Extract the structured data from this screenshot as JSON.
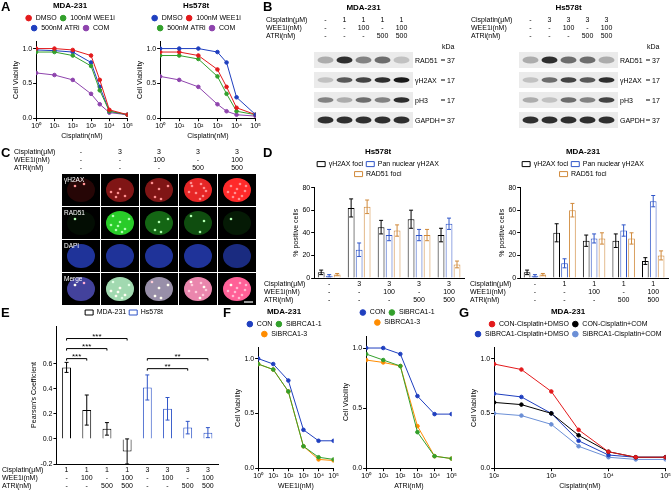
{
  "chart_data": [
    {
      "panel": "A",
      "type": "line",
      "title": "MDA-231",
      "x_label": "Cisplatin(nM)",
      "y_label": "Cell Viability",
      "log": "x",
      "grid": false,
      "legend": "top",
      "x": [
        1,
        10,
        100,
        1000,
        3000,
        10000,
        100000
      ],
      "series": [
        {
          "name": "DMSO",
          "color": "#e31a1c",
          "marker": "circle",
          "values": [
            1.0,
            1.0,
            0.98,
            0.9,
            0.55,
            0.12,
            0.05
          ]
        },
        {
          "name": "100nM WEE1i",
          "color": "#33a02c",
          "marker": "circle",
          "values": [
            0.95,
            0.95,
            0.9,
            0.75,
            0.4,
            0.1,
            0.05
          ]
        },
        {
          "name": "500nM ATRi",
          "color": "#1f3fbf",
          "marker": "circle",
          "values": [
            0.98,
            0.97,
            0.95,
            0.8,
            0.45,
            0.1,
            0.05
          ]
        },
        {
          "name": "COM",
          "color": "#8e44ad",
          "marker": "circle",
          "values": [
            0.65,
            0.62,
            0.55,
            0.35,
            0.2,
            0.08,
            0.05
          ]
        }
      ],
      "xlim": [
        1,
        100000
      ],
      "xticks": [
        {
          "value": 1,
          "label": "10⁰"
        },
        {
          "value": 10,
          "label": "10¹"
        },
        {
          "value": 100,
          "label": "10²"
        },
        {
          "value": 1000,
          "label": "10³"
        },
        {
          "value": 10000,
          "label": "10⁴"
        },
        {
          "value": 100000,
          "label": "10⁵"
        }
      ],
      "ylim": [
        0,
        1.1
      ],
      "yticks": [
        {
          "value": 0,
          "label": "0.0"
        },
        0.5,
        {
          "value": 1,
          "label": "1.0"
        }
      ]
    },
    {
      "type": "line",
      "title": "Hs578t",
      "x_label": "Cisplatin(nM)",
      "y_label": "Cell Viability",
      "log": "x",
      "grid": false,
      "legend": "top",
      "x": [
        1,
        10,
        100,
        1000,
        3000,
        10000,
        100000
      ],
      "series": [
        {
          "name": "DMSO",
          "color": "#1f3fbf",
          "marker": "circle",
          "values": [
            1.0,
            1.0,
            1.0,
            0.95,
            0.8,
            0.3,
            0.05
          ]
        },
        {
          "name": "100nM WEE1i",
          "color": "#e31a1c",
          "marker": "circle",
          "values": [
            0.95,
            0.95,
            0.9,
            0.7,
            0.45,
            0.15,
            0.05
          ]
        },
        {
          "name": "500nM ATRi",
          "color": "#33a02c",
          "marker": "circle",
          "values": [
            0.9,
            0.9,
            0.85,
            0.6,
            0.35,
            0.1,
            0.05
          ]
        },
        {
          "name": "COM",
          "color": "#8e44ad",
          "marker": "circle",
          "values": [
            0.6,
            0.55,
            0.45,
            0.2,
            0.1,
            0.05,
            0.03
          ]
        }
      ],
      "xlim": [
        1,
        100000
      ],
      "xticks": [
        {
          "value": 1,
          "label": "10⁰"
        },
        {
          "value": 10,
          "label": "10¹"
        },
        {
          "value": 100,
          "label": "10²"
        },
        {
          "value": 1000,
          "label": "10³"
        },
        {
          "value": 10000,
          "label": "10⁴"
        },
        {
          "value": 100000,
          "label": "10⁵"
        }
      ],
      "ylim": [
        0,
        1.1
      ],
      "yticks": [
        {
          "value": 0,
          "label": "0.0"
        },
        0.5,
        {
          "value": 1,
          "label": "1.0"
        }
      ]
    },
    {
      "panel": "D",
      "type": "bar",
      "title": "Hs578t",
      "y_label": "% positive cells",
      "grid": false,
      "legend": "top",
      "condition_rows": [
        "Cisplatin(μM)",
        "WEE1i(nM)",
        "ATRi(nM)"
      ],
      "categories": [
        [
          "-",
          "-",
          "-"
        ],
        [
          "3",
          "-",
          "-"
        ],
        [
          "3",
          "100",
          "-"
        ],
        [
          "3",
          "-",
          "500"
        ],
        [
          "3",
          "100",
          "500"
        ]
      ],
      "series": [
        {
          "name": "γH2AX foci",
          "color": "#000000",
          "values": [
            5,
            62,
            45,
            52,
            38
          ],
          "errors": [
            2,
            8,
            6,
            8,
            6
          ]
        },
        {
          "name": "Pan nuclear γH2AX",
          "color": "#2f55c8",
          "values": [
            2,
            25,
            38,
            38,
            48
          ],
          "errors": [
            1,
            6,
            5,
            5,
            5
          ]
        },
        {
          "name": "RAD51 foci",
          "color": "#d0893a",
          "values": [
            3,
            63,
            42,
            38,
            12
          ],
          "errors": [
            1,
            6,
            5,
            5,
            3
          ]
        }
      ],
      "ylim": [
        0,
        80
      ],
      "yticks": [
        0,
        20,
        40,
        60,
        80
      ]
    },
    {
      "type": "bar",
      "title": "MDA-231",
      "y_label": "% positive cells",
      "grid": false,
      "legend": "top",
      "condition_rows": [
        "Cisplatin(μM)",
        "WEE1i(nM)",
        "ATRi(nM)"
      ],
      "categories": [
        [
          "-",
          "-",
          "-"
        ],
        [
          "1",
          "-",
          "-"
        ],
        [
          "1",
          "100",
          "-"
        ],
        [
          "1",
          "-",
          "500"
        ],
        [
          "1",
          "100",
          "500"
        ]
      ],
      "series": [
        {
          "name": "γH2AX foci",
          "color": "#000000",
          "values": [
            5,
            40,
            33,
            33,
            15
          ],
          "errors": [
            2,
            8,
            5,
            6,
            3
          ]
        },
        {
          "name": "Pan nuclear γH2AX",
          "color": "#2f55c8",
          "values": [
            2,
            13,
            35,
            42,
            68
          ],
          "errors": [
            1,
            4,
            4,
            5,
            5
          ]
        },
        {
          "name": "RAD51 foci",
          "color": "#d0893a",
          "values": [
            3,
            60,
            35,
            35,
            20
          ],
          "errors": [
            1,
            6,
            5,
            5,
            4
          ]
        }
      ],
      "ylim": [
        0,
        80
      ],
      "yticks": [
        0,
        20,
        40,
        60,
        80
      ]
    },
    {
      "panel": "E",
      "type": "bar",
      "y_label": "Pearson's Coefficient",
      "grid": false,
      "legend": "top",
      "condition_rows": [
        "Cisplatin(μM)",
        "WEE1i(nM)",
        "ATRi(nM)"
      ],
      "categories": [
        [
          "1",
          "-",
          "-"
        ],
        [
          "1",
          "100",
          "-"
        ],
        [
          "1",
          "-",
          "500"
        ],
        [
          "1",
          "100",
          "500"
        ],
        [
          "3",
          "-",
          "-"
        ],
        [
          "3",
          "100",
          "-"
        ],
        [
          "3",
          "-",
          "500"
        ],
        [
          "3",
          "100",
          "500"
        ]
      ],
      "series": [
        {
          "name": "MDA-231",
          "color": "#000000",
          "values": [
            0.57,
            0.23,
            0.08,
            -0.1,
            null,
            null,
            null,
            null
          ],
          "errors": [
            0.04,
            0.12,
            0.05,
            0.1,
            null,
            null,
            null,
            null
          ]
        },
        {
          "name": "Hs578t",
          "color": "#2f55c8",
          "values": [
            null,
            null,
            null,
            null,
            0.41,
            0.24,
            0.09,
            0.05
          ],
          "errors": [
            null,
            null,
            null,
            null,
            0.1,
            0.09,
            0.05,
            0.04
          ]
        }
      ],
      "annotations": [
        {
          "from": 0,
          "to": 1,
          "y": 0.64,
          "text": "***"
        },
        {
          "from": 0,
          "to": 2,
          "y": 0.72,
          "text": "***"
        },
        {
          "from": 0,
          "to": 3,
          "y": 0.8,
          "text": "***"
        },
        {
          "from": 4,
          "to": 6,
          "y": 0.56,
          "text": "**"
        },
        {
          "from": 4,
          "to": 7,
          "y": 0.64,
          "text": "**"
        }
      ],
      "ylim": [
        -0.2,
        0.9
      ],
      "yticks": [
        -0.2,
        {
          "value": 0,
          "label": "0.0"
        },
        0.2,
        0.4,
        0.6
      ]
    },
    {
      "panel": "F",
      "type": "line",
      "title": "MDA-231",
      "x_label": "WEE1i(nM)",
      "y_label": "Cell Viability",
      "log": "x",
      "grid": false,
      "legend": "top",
      "x": [
        1,
        10,
        100,
        1000,
        10000,
        100000
      ],
      "series": [
        {
          "name": "CON",
          "color": "#1f3fbf",
          "marker": "circle",
          "values": [
            1.0,
            0.95,
            0.8,
            0.35,
            0.25,
            0.25
          ]
        },
        {
          "name": "SiBRCA1-1",
          "color": "#33a02c",
          "marker": "circle",
          "values": [
            0.95,
            0.9,
            0.7,
            0.2,
            0.1,
            0.08
          ]
        },
        {
          "name": "SiBRCA1-3",
          "color": "#ff8c00",
          "marker": "circle",
          "values": [
            0.95,
            0.9,
            0.7,
            0.2,
            0.08,
            0.07
          ]
        }
      ],
      "xlim": [
        1,
        100000
      ],
      "xticks": [
        {
          "value": 1,
          "label": "10⁰"
        },
        {
          "value": 10,
          "label": "10¹"
        },
        {
          "value": 100,
          "label": "10²"
        },
        {
          "value": 1000,
          "label": "10³"
        },
        {
          "value": 10000,
          "label": "10⁴"
        },
        {
          "value": 100000,
          "label": "10⁵"
        }
      ],
      "ylim": [
        0,
        1.1
      ],
      "yticks": [
        {
          "value": 0,
          "label": "0.0"
        },
        0.5,
        {
          "value": 1,
          "label": "1.0"
        }
      ]
    },
    {
      "type": "line",
      "x_label": "ATRi(nM)",
      "y_label": "Cell Viability",
      "log": "x",
      "grid": false,
      "legend": "top",
      "x": [
        1,
        10,
        100,
        1000,
        10000,
        100000
      ],
      "series": [
        {
          "name": "CON",
          "color": "#1f3fbf",
          "marker": "circle",
          "values": [
            1.0,
            1.0,
            0.95,
            0.6,
            0.45,
            0.45
          ]
        },
        {
          "name": "SiBRCA1-1",
          "color": "#33a02c",
          "marker": "circle",
          "values": [
            0.95,
            0.9,
            0.85,
            0.3,
            0.1,
            0.08
          ]
        },
        {
          "name": "SiBRCA1-3",
          "color": "#ff8c00",
          "marker": "circle",
          "values": [
            0.9,
            0.88,
            0.85,
            0.35,
            0.1,
            0.08
          ]
        }
      ],
      "xlim": [
        1,
        100000
      ],
      "xticks": [
        {
          "value": 1,
          "label": "10⁰"
        },
        {
          "value": 10,
          "label": "10¹"
        },
        {
          "value": 100,
          "label": "10²"
        },
        {
          "value": 1000,
          "label": "10³"
        },
        {
          "value": 10000,
          "label": "10⁴"
        },
        {
          "value": 100000,
          "label": "10⁵"
        }
      ],
      "ylim": [
        0,
        1.1
      ],
      "yticks": [
        {
          "value": 0,
          "label": "0.0"
        },
        0.5,
        {
          "value": 1,
          "label": "1.0"
        }
      ]
    },
    {
      "panel": "G",
      "type": "line",
      "title": "MDA-231",
      "x_label": "Cisplatin(nM)",
      "y_label": "Cell Viability",
      "log": "x",
      "grid": false,
      "legend": "top",
      "x": [
        100,
        300,
        1000,
        3000,
        10000,
        30000,
        100000
      ],
      "series": [
        {
          "name": "CON-Cisplatin+DMSO",
          "color": "#e31a1c",
          "marker": "circle",
          "values": [
            0.95,
            0.9,
            0.7,
            0.35,
            0.15,
            0.1,
            0.1
          ]
        },
        {
          "name": "CON-Cisplatin+COM",
          "color": "#000000",
          "marker": "circle",
          "values": [
            0.6,
            0.58,
            0.5,
            0.3,
            0.15,
            0.1,
            0.1
          ]
        },
        {
          "name": "SiBRCA1-Cisplatin+DMSO",
          "color": "#1f3fbf",
          "marker": "circle",
          "values": [
            0.68,
            0.65,
            0.5,
            0.25,
            0.12,
            0.1,
            0.1
          ]
        },
        {
          "name": "SiBRCA1-Cisplatin+COM",
          "color": "#6b8fd6",
          "marker": "circle",
          "values": [
            0.5,
            0.48,
            0.4,
            0.2,
            0.1,
            0.08,
            0.08
          ]
        }
      ],
      "xlim": [
        100,
        100000
      ],
      "xticks": [
        {
          "value": 100,
          "label": "10²"
        },
        {
          "value": 1000,
          "label": "10³"
        },
        {
          "value": 10000,
          "label": "10⁴"
        },
        {
          "value": 100000,
          "label": "10⁵"
        }
      ],
      "ylim": [
        0,
        1.1
      ],
      "yticks": [
        {
          "value": 0,
          "label": "0.0"
        },
        0.5,
        {
          "value": 1,
          "label": "1.0"
        }
      ]
    }
  ],
  "western_blot": {
    "panel": "B",
    "unit_label": "kDa",
    "condition_rows": [
      "Cisplatin(μM)",
      "WEE1i(nM)",
      "ATRi(nM)"
    ],
    "blots": [
      {
        "title": "MDA-231",
        "conditions": [
          [
            "-",
            "1",
            "1",
            "1",
            "1"
          ],
          [
            "-",
            "-",
            "100",
            "-",
            "100"
          ],
          [
            "-",
            "-",
            "-",
            "500",
            "500"
          ]
        ],
        "bands": [
          {
            "name": "RAD51",
            "kDa": 37,
            "intensity": [
              0.3,
              0.9,
              0.5,
              0.6,
              0.2
            ]
          },
          {
            "name": "γH2AX",
            "kDa": 17,
            "intensity": [
              0.2,
              0.7,
              0.8,
              0.9,
              1.0
            ]
          },
          {
            "name": "pH3",
            "kDa": 17,
            "intensity": [
              0.5,
              0.3,
              0.6,
              0.5,
              0.9
            ]
          },
          {
            "name": "GAPDH",
            "kDa": 37,
            "intensity": [
              0.9,
              0.9,
              0.9,
              0.9,
              0.9
            ]
          }
        ]
      },
      {
        "title": "Hs578t",
        "conditions": [
          [
            "-",
            "3",
            "3",
            "3",
            "3"
          ],
          [
            "-",
            "-",
            "100",
            "-",
            "100"
          ],
          [
            "-",
            "-",
            "-",
            "500",
            "500"
          ]
        ],
        "bands": [
          {
            "name": "RAD51",
            "kDa": 37,
            "intensity": [
              0.3,
              0.9,
              0.6,
              0.6,
              0.3
            ]
          },
          {
            "name": "γH2AX",
            "kDa": 17,
            "intensity": [
              0.2,
              0.6,
              0.8,
              0.7,
              0.9
            ]
          },
          {
            "name": "pH3",
            "kDa": 17,
            "intensity": [
              0.3,
              0.2,
              0.6,
              0.5,
              0.8
            ]
          },
          {
            "name": "GAPDH",
            "kDa": 37,
            "intensity": [
              0.9,
              0.9,
              0.9,
              0.9,
              0.9
            ]
          }
        ]
      }
    ]
  },
  "microscopy": {
    "panel": "C",
    "condition_rows": [
      "Cisplatin(μM)",
      "WEE1i(nM)",
      "ATRi(nM)"
    ],
    "conditions": [
      [
        "-",
        "3",
        "3",
        "3",
        "3"
      ],
      [
        "-",
        "-",
        "100",
        "-",
        "100"
      ],
      [
        "-",
        "-",
        "-",
        "500",
        "500"
      ]
    ],
    "channels": [
      "γH2AX",
      "RAD51",
      "DAPI",
      "Merge"
    ],
    "signal": [
      [
        0.15,
        0.5,
        0.5,
        0.9,
        1.0
      ],
      [
        0.05,
        0.8,
        0.4,
        0.3,
        0.1
      ],
      [
        0.6,
        0.6,
        0.6,
        0.6,
        0.5
      ]
    ]
  }
}
